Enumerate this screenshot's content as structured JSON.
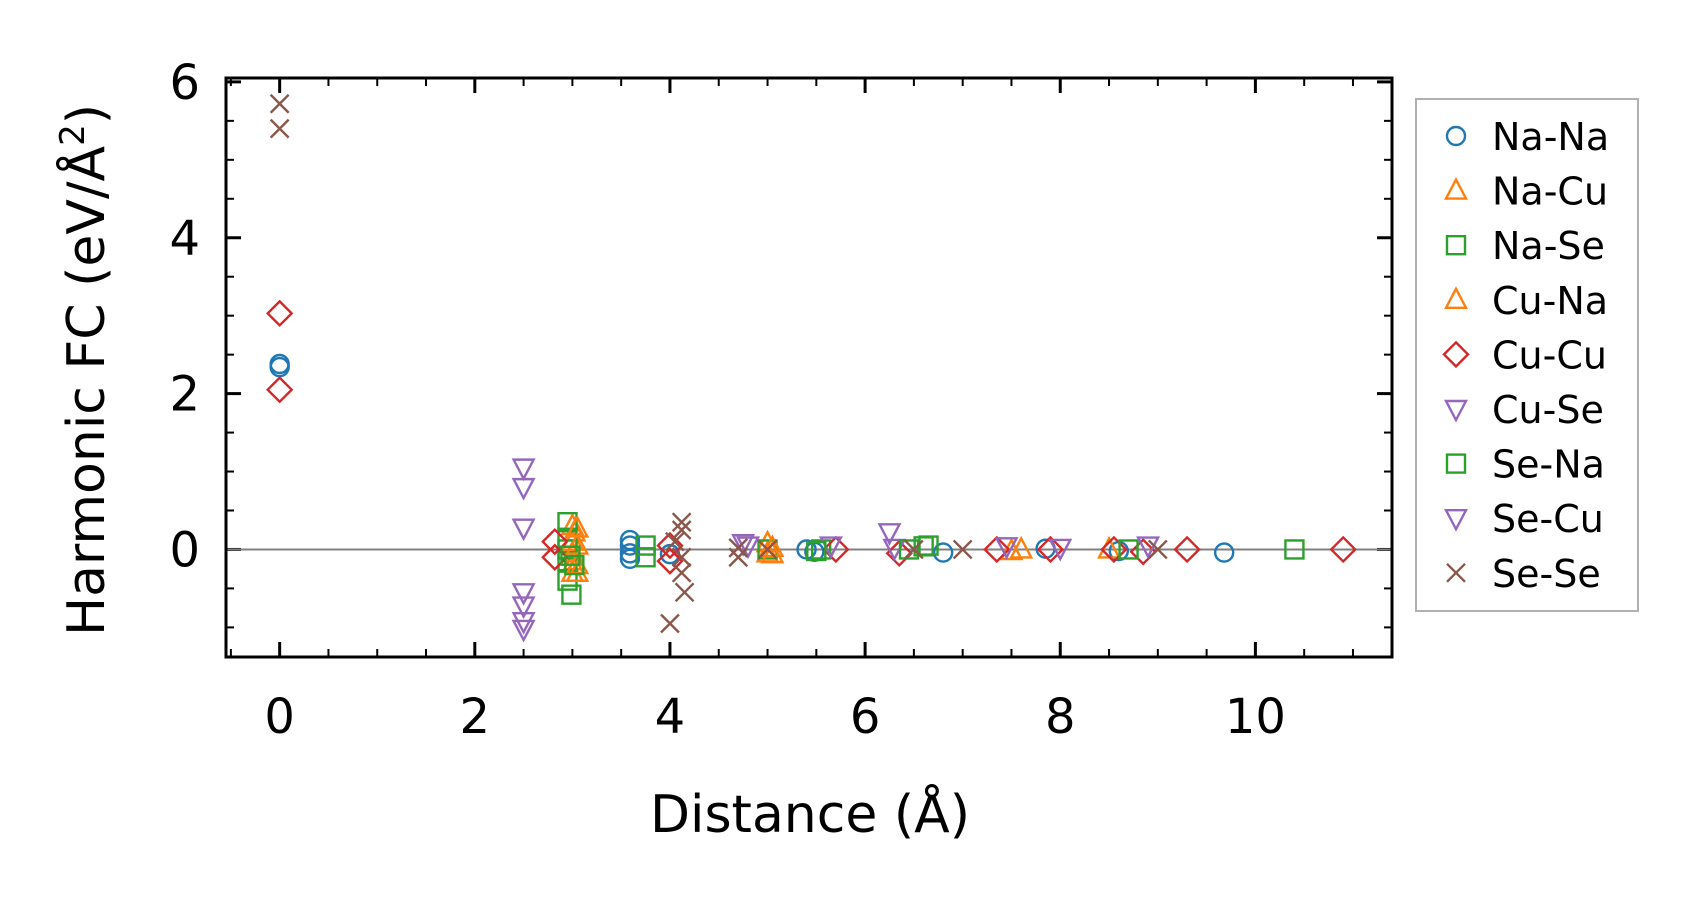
{
  "chart_data": {
    "type": "scatter",
    "xlabel": "Distance (Å)",
    "ylabel_main": "Harmonic FC (eV/Å",
    "ylabel_sup": "2",
    "ylabel_close": ")",
    "xlim": [
      -0.55,
      11.4
    ],
    "ylim": [
      -1.38,
      6.05
    ],
    "x_ticks": [
      0,
      2,
      4,
      6,
      8,
      10
    ],
    "x_tick_labels": [
      "0",
      "2",
      "4",
      "6",
      "8",
      "10"
    ],
    "y_ticks": [
      0,
      2,
      4,
      6
    ],
    "y_tick_labels": [
      "0",
      "2",
      "4",
      "6"
    ],
    "zero_line": true,
    "grid": false,
    "legend_position": "outside-right",
    "series": [
      {
        "name": "Na-Na",
        "marker": "circle",
        "color": "#1f77b4",
        "points": [
          [
            0,
            2.38
          ],
          [
            0,
            2.34
          ],
          [
            3.59,
            0.12
          ],
          [
            3.59,
            0.05
          ],
          [
            3.59,
            -0.05
          ],
          [
            3.59,
            -0.12
          ],
          [
            4.0,
            -0.06
          ],
          [
            5.4,
            0.0
          ],
          [
            5.48,
            -0.03
          ],
          [
            6.8,
            -0.04
          ],
          [
            7.85,
            0.01
          ],
          [
            8.6,
            -0.02
          ],
          [
            9.68,
            -0.04
          ]
        ]
      },
      {
        "name": "Na-Cu",
        "marker": "triangle-up",
        "color": "#ff7f0e",
        "points": [
          [
            3.0,
            0.3
          ],
          [
            3.02,
            0.22
          ],
          [
            3.0,
            0.1
          ],
          [
            3.0,
            -0.05
          ],
          [
            3.02,
            -0.15
          ],
          [
            3.0,
            -0.3
          ],
          [
            5.0,
            0.08
          ],
          [
            5.0,
            -0.05
          ],
          [
            7.6,
            0.0
          ],
          [
            8.5,
            0.0
          ]
        ]
      },
      {
        "name": "Na-Se",
        "marker": "square",
        "color": "#2ca02c",
        "points": [
          [
            2.95,
            0.35
          ],
          [
            2.95,
            0.15
          ],
          [
            2.95,
            0.0
          ],
          [
            2.95,
            -0.15
          ],
          [
            2.95,
            -0.4
          ],
          [
            2.99,
            -0.58
          ],
          [
            3.75,
            0.05
          ],
          [
            3.75,
            -0.1
          ],
          [
            5.0,
            0.0
          ],
          [
            5.55,
            0.0
          ],
          [
            6.6,
            0.04
          ],
          [
            10.4,
            0.0
          ]
        ]
      },
      {
        "name": "Cu-Na",
        "marker": "triangle-up",
        "color": "#ff7f0e",
        "points": [
          [
            3.05,
            0.27
          ],
          [
            3.05,
            0.05
          ],
          [
            3.05,
            -0.2
          ],
          [
            3.05,
            -0.3
          ],
          [
            5.05,
            0.02
          ],
          [
            5.05,
            -0.06
          ],
          [
            7.5,
            -0.02
          ]
        ]
      },
      {
        "name": "Cu-Cu",
        "marker": "diamond",
        "color": "#d62728",
        "points": [
          [
            0,
            3.03
          ],
          [
            0,
            2.05
          ],
          [
            2.82,
            0.1
          ],
          [
            2.82,
            -0.1
          ],
          [
            4.0,
            0.05
          ],
          [
            4.0,
            -0.15
          ],
          [
            5.7,
            0.0
          ],
          [
            6.35,
            -0.05
          ],
          [
            7.35,
            0.0
          ],
          [
            7.9,
            0.0
          ],
          [
            8.55,
            0.0
          ],
          [
            8.85,
            -0.03
          ],
          [
            9.3,
            0.0
          ],
          [
            10.9,
            0.0
          ]
        ]
      },
      {
        "name": "Cu-Se",
        "marker": "triangle-down",
        "color": "#9467bd",
        "points": [
          [
            2.5,
            1.05
          ],
          [
            2.5,
            0.8
          ],
          [
            2.5,
            0.28
          ],
          [
            2.5,
            -0.55
          ],
          [
            2.5,
            -0.72
          ],
          [
            2.5,
            -0.92
          ],
          [
            2.5,
            -1.02
          ],
          [
            4.75,
            0.08
          ],
          [
            5.65,
            0.05
          ],
          [
            6.25,
            0.22
          ],
          [
            6.3,
            0.02
          ]
        ]
      },
      {
        "name": "Se-Na",
        "marker": "square",
        "color": "#2ca02c",
        "points": [
          [
            2.98,
            -0.08
          ],
          [
            3.02,
            -0.2
          ],
          [
            5.5,
            -0.02
          ],
          [
            6.45,
            0.0
          ],
          [
            6.65,
            0.05
          ],
          [
            8.7,
            0.0
          ]
        ]
      },
      {
        "name": "Se-Cu",
        "marker": "triangle-down",
        "color": "#9467bd",
        "points": [
          [
            4.8,
            0.05
          ],
          [
            7.45,
            0.04
          ],
          [
            8.0,
            0.02
          ],
          [
            8.9,
            0.05
          ]
        ]
      },
      {
        "name": "Se-Se",
        "marker": "x",
        "color": "#8c564b",
        "points": [
          [
            0,
            5.72
          ],
          [
            0,
            5.4
          ],
          [
            4.0,
            -0.95
          ],
          [
            4.05,
            0.1
          ],
          [
            4.12,
            0.35
          ],
          [
            4.12,
            0.25
          ],
          [
            4.12,
            -0.1
          ],
          [
            4.12,
            -0.3
          ],
          [
            4.15,
            -0.55
          ],
          [
            4.7,
            0.02
          ],
          [
            4.7,
            -0.1
          ],
          [
            5.0,
            0.0
          ],
          [
            6.5,
            0.0
          ],
          [
            7.0,
            0.0
          ],
          [
            9.0,
            0.0
          ]
        ]
      }
    ]
  }
}
